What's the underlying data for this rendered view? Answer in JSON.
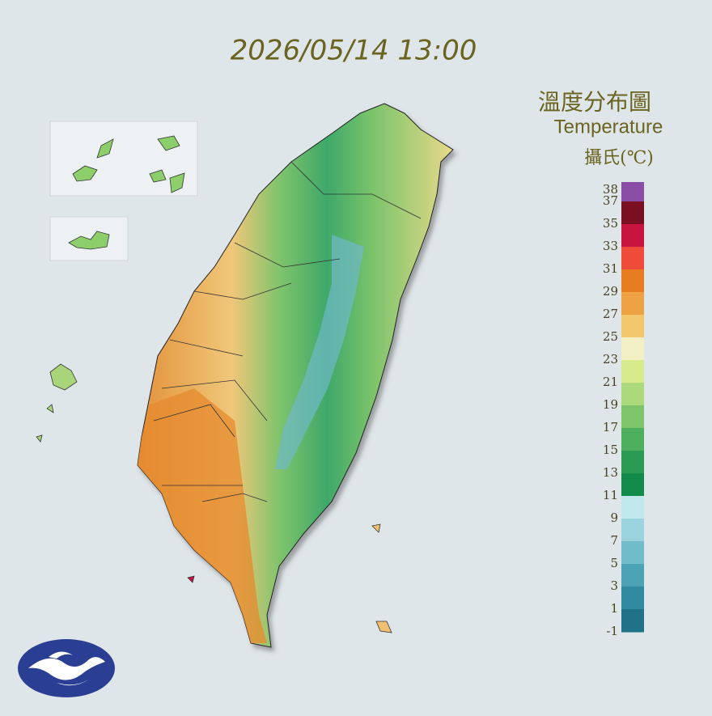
{
  "header": {
    "title": "2026/05/14 13:00"
  },
  "legend": {
    "title": "溫度分布圖",
    "subtitle": "Temperature",
    "unit": "攝氏(℃)",
    "ticks": [
      "38",
      "37",
      "35",
      "33",
      "31",
      "29",
      "27",
      "25",
      "23",
      "21",
      "19",
      "17",
      "15",
      "13",
      "11",
      "9",
      "7",
      "5",
      "3",
      "1",
      "-1"
    ],
    "colors": [
      "#8a4ea6",
      "#7a0f22",
      "#c8153f",
      "#ef4b3b",
      "#e77b1f",
      "#efa243",
      "#f3c76c",
      "#f2efc4",
      "#d8eb8c",
      "#abd97b",
      "#7dc46b",
      "#4eaf5f",
      "#2b9a53",
      "#128a49",
      "#c0e8ec",
      "#9bd4de",
      "#71bccb",
      "#4ba3b5",
      "#308ba0",
      "#1f7288"
    ]
  }
}
